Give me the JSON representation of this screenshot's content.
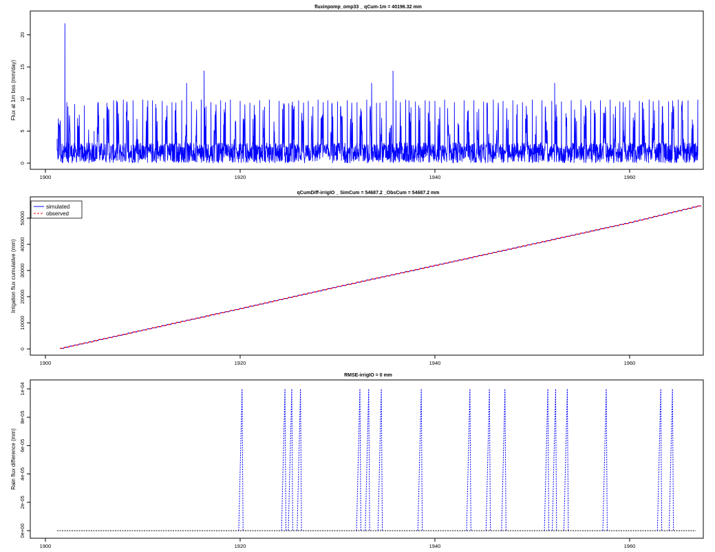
{
  "panels": [
    {
      "id": "flux",
      "title": "fluxinpomp_omp33 _ qCum-1m = 40196.32 mm",
      "ylabel": "Flux at 1m bss (mm/day)",
      "xticks": [
        "1900",
        "1920",
        "1940",
        "1960"
      ],
      "yticks": [
        "0",
        "5",
        "10",
        "15",
        "20"
      ]
    },
    {
      "id": "cumulative",
      "title": "qCumDiff-irrigIO _ SimCum = 54687.2 _ObsCum = 54687.2 mm",
      "ylabel": "Irrigation flux cumulative (mm)",
      "xticks": [
        "1900",
        "1920",
        "1940",
        "1960"
      ],
      "yticks": [
        "0",
        "10000",
        "20000",
        "30000",
        "40000",
        "50000"
      ],
      "legend": [
        "simulated",
        "observed"
      ]
    },
    {
      "id": "difference",
      "title": "RMSE-irrigIO = 0 mm",
      "ylabel": "Rain flux difference (mm)",
      "xticks": [
        "1900",
        "1920",
        "1940",
        "1960"
      ],
      "yticks": [
        "0e+00",
        "2e-05",
        "4e-05",
        "6e-05",
        "8e-05",
        "1e-04"
      ]
    }
  ],
  "colors": {
    "simulated": "#0000ff",
    "observed": "#ff0000",
    "axes": "#000000",
    "background": "#ffffff"
  },
  "chart_data": [
    {
      "type": "line",
      "title": "fluxinpomp_omp33 _ qCum-1m = 40196.32 mm",
      "ylabel": "Flux at 1m bss (mm/day)",
      "xlim": [
        1900,
        1967
      ],
      "ylim": [
        0,
        22
      ],
      "series": [
        {
          "values_note_free": true,
          "x": [
            1901.2,
            1901.8,
            1902.0,
            1902.2,
            1903.0,
            1904.0,
            1905.0,
            1906.0,
            1907.0,
            1908.0,
            1909.0,
            1910.0,
            1911.0,
            1912.0,
            1913.0,
            1914.0,
            1914.5,
            1915.0,
            1916.0,
            1916.3,
            1917.0,
            1918.0,
            1919.0,
            1920.0,
            1921.0,
            1922.0,
            1923.0,
            1924.0,
            1925.0,
            1926.0,
            1927.0,
            1928.0,
            1929.0,
            1930.0,
            1931.0,
            1932.0,
            1933.0,
            1933.5,
            1934.0,
            1935.0,
            1935.7,
            1936.0,
            1937.0,
            1938.0,
            1939.0,
            1940.0,
            1941.0,
            1942.0,
            1943.0,
            1944.0,
            1945.0,
            1946.0,
            1947.0,
            1948.0,
            1949.0,
            1950.0,
            1951.0,
            1952.0,
            1952.3,
            1953.0,
            1954.0,
            1955.0,
            1956.0,
            1957.0,
            1958.0,
            1959.0,
            1960.0,
            1961.0,
            1962.0,
            1963.0,
            1964.0,
            1965.0,
            1966.0,
            1967.0
          ],
          "y": [
            3.8,
            2.0,
            21.8,
            9.5,
            9.2,
            9.0,
            5.0,
            7.0,
            9.8,
            9.9,
            9.8,
            9.9,
            9.8,
            9.7,
            9.5,
            9.8,
            12.5,
            9.6,
            9.9,
            14.4,
            9.5,
            9.8,
            9.9,
            9.7,
            9.4,
            9.8,
            9.9,
            9.7,
            9.3,
            9.8,
            9.7,
            9.9,
            9.8,
            9.6,
            9.8,
            9.5,
            9.9,
            12.5,
            9.4,
            9.7,
            14.4,
            9.8,
            9.9,
            9.6,
            9.8,
            9.7,
            9.9,
            9.5,
            9.8,
            9.8,
            9.6,
            9.9,
            9.7,
            9.8,
            9.5,
            9.9,
            9.8,
            9.7,
            12.5,
            9.6,
            9.8,
            9.9,
            9.7,
            9.8,
            9.9,
            9.6,
            9.8,
            9.7,
            9.9,
            9.8,
            9.6,
            9.9,
            9.8,
            9.9
          ]
        }
      ]
    },
    {
      "type": "line",
      "title": "qCumDiff-irrigIO _ SimCum = 54687.2 _ObsCum = 54687.2 mm",
      "ylabel": "Irrigation flux cumulative (mm)",
      "xlim": [
        1900,
        1967
      ],
      "ylim": [
        0,
        55000
      ],
      "legend_position": "top-left",
      "series": [
        {
          "name": "simulated",
          "x": [
            1901.2,
            1910,
            1920,
            1930,
            1940,
            1950,
            1960,
            1967
          ],
          "y": [
            0,
            7300,
            15500,
            23900,
            32000,
            40200,
            48400,
            54687.2
          ]
        },
        {
          "name": "observed",
          "x": [
            1901.2,
            1910,
            1920,
            1930,
            1940,
            1950,
            1960,
            1967
          ],
          "y": [
            0,
            7300,
            15500,
            23900,
            32000,
            40200,
            48400,
            54687.2
          ]
        }
      ]
    },
    {
      "type": "line",
      "title": "RMSE-irrigIO = 0 mm",
      "ylabel": "Rain flux difference (mm)",
      "xlim": [
        1900,
        1967
      ],
      "ylim": [
        0,
        0.0001
      ],
      "spikes_x": [
        1920.2,
        1924.6,
        1925.3,
        1926.2,
        1932.3,
        1933.2,
        1934.5,
        1938.6,
        1943.6,
        1945.6,
        1947.2,
        1951.6,
        1952.4,
        1953.6,
        1957.6,
        1963.2,
        1964.4
      ],
      "spike_value": 0.0001,
      "series": [
        {
          "name": "difference",
          "baseline": 0
        }
      ]
    }
  ]
}
